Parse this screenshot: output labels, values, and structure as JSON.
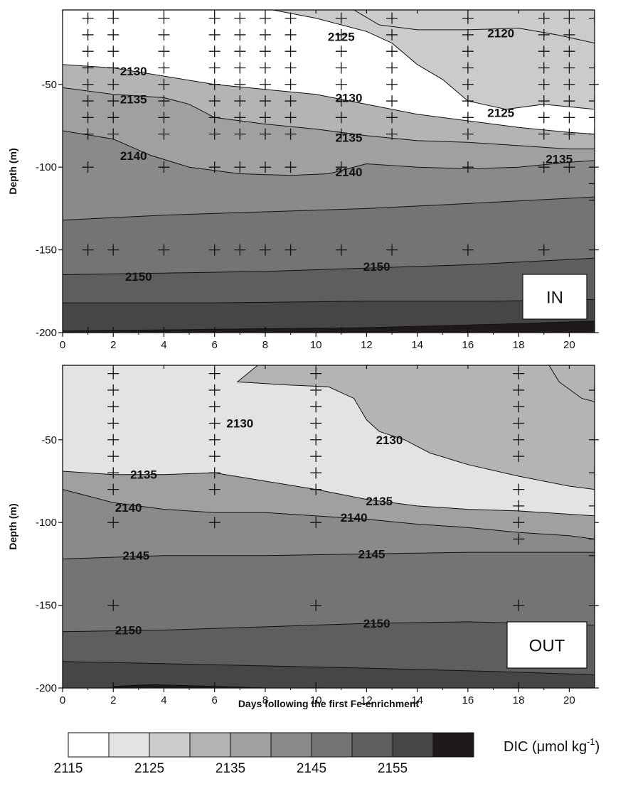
{
  "chart_data": [
    {
      "type": "contour",
      "tag": "IN",
      "ylabel": "Depth (m)",
      "xlabel": "",
      "xlim": [
        0,
        21
      ],
      "ylim": [
        -200,
        -5
      ],
      "xticks": [
        "0",
        "2",
        "4",
        "6",
        "8",
        "10",
        "12",
        "14",
        "16",
        "18",
        "20"
      ],
      "yticks": [
        "-50",
        "-100",
        "-150",
        "-200"
      ],
      "contour_levels": [
        2120,
        2125,
        2130,
        2135,
        2140,
        2145,
        2150,
        2155,
        2160
      ],
      "contour_lines": [
        {
          "level": 2120,
          "points": [
            [
              11.5,
              -5
            ],
            [
              12.5,
              -14
            ],
            [
              14,
              -17
            ],
            [
              16,
              -17
            ],
            [
              18,
              -16
            ],
            [
              19.5,
              -20
            ],
            [
              21,
              -25
            ]
          ]
        },
        {
          "level": 2125,
          "points": [
            [
              8.3,
              -5
            ],
            [
              10,
              -10
            ],
            [
              12,
              -18
            ],
            [
              13,
              -25
            ],
            [
              14,
              -38
            ],
            [
              15,
              -47
            ],
            [
              16,
              -60
            ],
            [
              17.5,
              -65
            ],
            [
              19,
              -62
            ],
            [
              21,
              -65
            ]
          ]
        },
        {
          "level": 2130,
          "points": [
            [
              0,
              -38
            ],
            [
              2,
              -40
            ],
            [
              4,
              -45
            ],
            [
              6,
              -50
            ],
            [
              8,
              -53
            ],
            [
              10,
              -56
            ],
            [
              12,
              -62
            ],
            [
              14,
              -68
            ],
            [
              16,
              -72
            ],
            [
              18,
              -76
            ],
            [
              20,
              -79
            ],
            [
              21,
              -80
            ]
          ]
        },
        {
          "level": 2135,
          "points": [
            [
              0,
              -52
            ],
            [
              2,
              -56
            ],
            [
              4,
              -58
            ],
            [
              5,
              -62
            ],
            [
              6,
              -70
            ],
            [
              8,
              -74
            ],
            [
              10,
              -77
            ],
            [
              12,
              -81
            ],
            [
              14,
              -84
            ],
            [
              16,
              -85
            ],
            [
              18,
              -87
            ],
            [
              20,
              -89
            ],
            [
              21,
              -89
            ]
          ]
        },
        {
          "level": 2140,
          "points": [
            [
              0,
              -78
            ],
            [
              2,
              -83
            ],
            [
              3.5,
              -93
            ],
            [
              5,
              -100
            ],
            [
              7,
              -104
            ],
            [
              9,
              -105
            ],
            [
              10.5,
              -104
            ],
            [
              12,
              -98
            ],
            [
              14,
              -100
            ],
            [
              16,
              -101
            ],
            [
              18,
              -100
            ],
            [
              20,
              -97
            ],
            [
              21,
              -96
            ]
          ]
        },
        {
          "level": 2145,
          "points": [
            [
              0,
              -132
            ],
            [
              4,
              -129
            ],
            [
              8,
              -127
            ],
            [
              12,
              -125
            ],
            [
              16,
              -122
            ],
            [
              21,
              -118
            ]
          ]
        },
        {
          "level": 2150,
          "points": [
            [
              0,
              -165
            ],
            [
              4,
              -164
            ],
            [
              8,
              -163
            ],
            [
              12,
              -161
            ],
            [
              16,
              -159
            ],
            [
              21,
              -155
            ]
          ]
        },
        {
          "level": 2155,
          "points": [
            [
              0,
              -182
            ],
            [
              6,
              -182
            ],
            [
              12,
              -181
            ],
            [
              17,
              -181
            ],
            [
              21,
              -180
            ]
          ]
        },
        {
          "level": 2160,
          "points": [
            [
              0,
              -199
            ],
            [
              6,
              -198
            ],
            [
              12,
              -197
            ],
            [
              17,
              -195
            ],
            [
              21,
              -193
            ]
          ]
        }
      ],
      "contour_labels": [
        {
          "text": "2120",
          "x": 17.3,
          "y": -19
        },
        {
          "text": "2125",
          "x": 11.0,
          "y": -21
        },
        {
          "text": "2130",
          "x": 2.8,
          "y": -42
        },
        {
          "text": "2130",
          "x": 11.3,
          "y": -58
        },
        {
          "text": "2125",
          "x": 17.3,
          "y": -67
        },
        {
          "text": "2135",
          "x": 2.8,
          "y": -59
        },
        {
          "text": "2135",
          "x": 11.3,
          "y": -82
        },
        {
          "text": "2135",
          "x": 19.6,
          "y": -95
        },
        {
          "text": "2140",
          "x": 2.8,
          "y": -93
        },
        {
          "text": "2140",
          "x": 11.3,
          "y": -103
        },
        {
          "text": "2150",
          "x": 3.0,
          "y": -166
        },
        {
          "text": "2150",
          "x": 12.4,
          "y": -160
        }
      ],
      "sample_points": [
        {
          "day": 1,
          "depths": [
            -10,
            -20,
            -30,
            -40,
            -50,
            -60,
            -70,
            -80,
            -100,
            -150,
            -200
          ]
        },
        {
          "day": 2,
          "depths": [
            -10,
            -20,
            -30,
            -40,
            -50,
            -60,
            -70,
            -80,
            -150,
            -200
          ]
        },
        {
          "day": 4,
          "depths": [
            -10,
            -20,
            -30,
            -40,
            -50,
            -60,
            -70,
            -80,
            -100,
            -150,
            -200
          ]
        },
        {
          "day": 6,
          "depths": [
            -10,
            -20,
            -30,
            -40,
            -50,
            -60,
            -70,
            -80,
            -100,
            -150,
            -200
          ]
        },
        {
          "day": 7,
          "depths": [
            -10,
            -20,
            -30,
            -40,
            -50,
            -60,
            -70,
            -80,
            -100,
            -150
          ]
        },
        {
          "day": 8,
          "depths": [
            -10,
            -20,
            -30,
            -40,
            -50,
            -60,
            -70,
            -80,
            -100,
            -150,
            -200
          ]
        },
        {
          "day": 9,
          "depths": [
            -10,
            -20,
            -30,
            -40,
            -50,
            -60,
            -70,
            -80,
            -100,
            -150
          ]
        },
        {
          "day": 11,
          "depths": [
            -10,
            -20,
            -30,
            -40,
            -50,
            -60,
            -70,
            -80,
            -100,
            -150,
            -200
          ]
        },
        {
          "day": 13,
          "depths": [
            -10,
            -20,
            -30,
            -40,
            -50,
            -60,
            -70,
            -80,
            -150,
            -200
          ]
        },
        {
          "day": 16,
          "depths": [
            -10,
            -20,
            -30,
            -40,
            -50,
            -60,
            -70,
            -80,
            -100,
            -150,
            -200
          ]
        },
        {
          "day": 19,
          "depths": [
            -10,
            -20,
            -30,
            -40,
            -50,
            -60,
            -70,
            -80,
            -100,
            -150,
            -200
          ]
        },
        {
          "day": 20,
          "depths": [
            -10,
            -20,
            -30,
            -40,
            -50,
            -60,
            -70,
            -80,
            -100
          ]
        },
        {
          "day": 21,
          "depths": [
            -10,
            -40,
            -50,
            -60,
            -70,
            -80,
            -100,
            -110,
            -120,
            -150,
            -200
          ]
        }
      ]
    },
    {
      "type": "contour",
      "tag": "OUT",
      "ylabel": "Depth (m)",
      "xlabel": "Days following the first Fe-enrichment",
      "xlim": [
        0,
        21
      ],
      "ylim": [
        -200,
        -5
      ],
      "xticks": [
        "0",
        "2",
        "4",
        "6",
        "8",
        "10",
        "12",
        "14",
        "16",
        "18",
        "20"
      ],
      "yticks": [
        "-50",
        "-100",
        "-150",
        "-200"
      ],
      "contour_levels": [
        2125,
        2130,
        2135,
        2140,
        2145,
        2150,
        2155,
        2160
      ],
      "contour_lines": [
        {
          "level": 2125,
          "points": [
            [
              19.2,
              -5
            ],
            [
              19.6,
              -15
            ],
            [
              20.5,
              -25
            ],
            [
              21,
              -27
            ]
          ]
        },
        {
          "level": 2130,
          "points": [
            [
              7.7,
              -5
            ],
            [
              6.9,
              -15
            ],
            [
              9,
              -17
            ],
            [
              10.5,
              -18
            ],
            [
              11.5,
              -25
            ],
            [
              12,
              -38
            ],
            [
              12.5,
              -45
            ],
            [
              13.5,
              -50
            ],
            [
              14.5,
              -58
            ],
            [
              16,
              -65
            ],
            [
              18,
              -72
            ],
            [
              20,
              -78
            ],
            [
              21,
              -80
            ]
          ]
        },
        {
          "level": 2135,
          "points": [
            [
              0,
              -69
            ],
            [
              2,
              -71
            ],
            [
              4,
              -71
            ],
            [
              6,
              -70
            ],
            [
              8,
              -75
            ],
            [
              10,
              -80
            ],
            [
              12,
              -86
            ],
            [
              14,
              -90
            ],
            [
              16,
              -92
            ],
            [
              18,
              -93
            ],
            [
              20,
              -95
            ],
            [
              21,
              -96
            ]
          ]
        },
        {
          "level": 2140,
          "points": [
            [
              0,
              -80
            ],
            [
              2,
              -88
            ],
            [
              4,
              -92
            ],
            [
              6,
              -94
            ],
            [
              8,
              -94
            ],
            [
              10,
              -96
            ],
            [
              12,
              -98
            ],
            [
              14,
              -101
            ],
            [
              16,
              -103
            ],
            [
              18,
              -106
            ],
            [
              20,
              -108
            ],
            [
              21,
              -110
            ]
          ]
        },
        {
          "level": 2145,
          "points": [
            [
              0,
              -122
            ],
            [
              4,
              -120
            ],
            [
              8,
              -120
            ],
            [
              12,
              -119
            ],
            [
              16,
              -118
            ],
            [
              21,
              -118
            ]
          ]
        },
        {
          "level": 2150,
          "points": [
            [
              0,
              -166
            ],
            [
              4,
              -165
            ],
            [
              8,
              -163
            ],
            [
              12,
              -161
            ],
            [
              16,
              -160
            ],
            [
              21,
              -162
            ]
          ]
        },
        {
          "level": 2155,
          "points": [
            [
              0,
              -184
            ],
            [
              6,
              -186
            ],
            [
              12,
              -188
            ],
            [
              17,
              -190
            ],
            [
              21,
              -192
            ]
          ]
        },
        {
          "level": 2160,
          "points": [
            [
              2,
              -199
            ],
            [
              3.5,
              -198
            ],
            [
              6,
              -199
            ],
            [
              8,
              -200
            ]
          ]
        }
      ],
      "contour_labels": [
        {
          "text": "2130",
          "x": 7.0,
          "y": -40
        },
        {
          "text": "2130",
          "x": 12.9,
          "y": -50
        },
        {
          "text": "2135",
          "x": 3.2,
          "y": -71
        },
        {
          "text": "2135",
          "x": 12.5,
          "y": -87
        },
        {
          "text": "2140",
          "x": 2.6,
          "y": -91
        },
        {
          "text": "2140",
          "x": 11.5,
          "y": -97
        },
        {
          "text": "2145",
          "x": 2.9,
          "y": -120
        },
        {
          "text": "2145",
          "x": 12.2,
          "y": -119
        },
        {
          "text": "2150",
          "x": 2.6,
          "y": -165
        },
        {
          "text": "2150",
          "x": 12.4,
          "y": -161
        }
      ],
      "sample_points": [
        {
          "day": 2,
          "depths": [
            -10,
            -20,
            -30,
            -40,
            -50,
            -60,
            -70,
            -80,
            -100,
            -150,
            -200
          ]
        },
        {
          "day": 6,
          "depths": [
            -10,
            -20,
            -30,
            -40,
            -50,
            -60,
            -70,
            -80,
            -100,
            -200
          ]
        },
        {
          "day": 10,
          "depths": [
            -10,
            -20,
            -30,
            -40,
            -50,
            -60,
            -70,
            -80,
            -100,
            -150,
            -200
          ]
        },
        {
          "day": 18,
          "depths": [
            -10,
            -20,
            -30,
            -40,
            -50,
            -60,
            -80,
            -90,
            -100,
            -110,
            -150,
            -200
          ]
        },
        {
          "day": 21,
          "depths": [
            -20,
            -50,
            -70,
            -90,
            -110,
            -120,
            -150,
            -200
          ]
        }
      ]
    }
  ],
  "colorbar": {
    "title_prefix": "DIC (μmol kg",
    "title_sup": "-1",
    "title_suffix": ")",
    "tick_labels": [
      "2115",
      "2125",
      "2135",
      "2145",
      "2155"
    ],
    "bins": [
      2115,
      2120,
      2125,
      2130,
      2135,
      2140,
      2145,
      2150,
      2155,
      2160,
      2165
    ],
    "colors": [
      "#ffffff",
      "#e3e3e3",
      "#cbcbcb",
      "#b4b4b4",
      "#a0a0a0",
      "#8a8a8a",
      "#747474",
      "#5e5e5e",
      "#464646",
      "#1e1a1a"
    ]
  }
}
